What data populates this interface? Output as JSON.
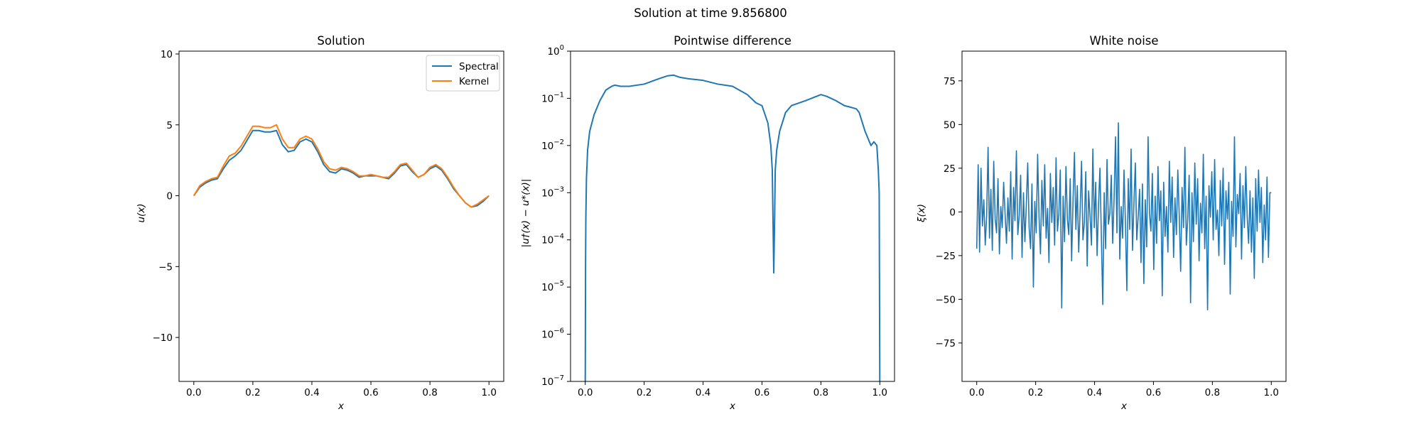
{
  "suptitle": "Solution at time 9.856800",
  "colors": {
    "spectral": "#1f77b4",
    "kernel": "#ff7f0e",
    "noise": "#1f77b4",
    "diff": "#1f77b4"
  },
  "chart_data": [
    {
      "type": "line",
      "title": "Solution",
      "xlabel": "x",
      "ylabel": "u(x)",
      "xlim": [
        -0.05,
        1.05
      ],
      "ylim": [
        -13.1,
        10.2
      ],
      "xticks": [
        0.0,
        0.2,
        0.4,
        0.6,
        0.8,
        1.0
      ],
      "xtick_labels": [
        "0.0",
        "0.2",
        "0.4",
        "0.6",
        "0.8",
        "1.0"
      ],
      "yticks": [
        10,
        5,
        0,
        -5,
        -10
      ],
      "ytick_labels": [
        "10",
        "5",
        "0",
        "−5",
        "−10"
      ],
      "legend": {
        "placement": "top-right",
        "entries": [
          "Spectral",
          "Kernel"
        ]
      },
      "series": [
        {
          "name": "Spectral",
          "x": [
            0.0,
            0.02,
            0.04,
            0.06,
            0.08,
            0.1,
            0.12,
            0.14,
            0.16,
            0.18,
            0.2,
            0.22,
            0.24,
            0.26,
            0.28,
            0.3,
            0.32,
            0.34,
            0.36,
            0.38,
            0.4,
            0.42,
            0.44,
            0.46,
            0.48,
            0.5,
            0.52,
            0.54,
            0.56,
            0.58,
            0.6,
            0.62,
            0.64,
            0.66,
            0.68,
            0.7,
            0.72,
            0.74,
            0.76,
            0.78,
            0.8,
            0.82,
            0.84,
            0.86,
            0.88,
            0.9,
            0.92,
            0.94,
            0.96,
            0.98,
            1.0
          ],
          "y": [
            0.0,
            0.6,
            0.9,
            1.1,
            1.2,
            1.9,
            2.5,
            2.8,
            3.2,
            3.9,
            4.6,
            4.6,
            4.5,
            4.5,
            4.6,
            3.6,
            3.1,
            3.2,
            3.8,
            4.0,
            3.8,
            3.1,
            2.2,
            1.7,
            1.6,
            1.9,
            1.8,
            1.6,
            1.3,
            1.4,
            1.4,
            1.4,
            1.3,
            1.2,
            1.6,
            2.1,
            2.2,
            1.7,
            1.3,
            1.5,
            1.9,
            2.1,
            1.8,
            1.2,
            0.5,
            0.0,
            -0.5,
            -0.8,
            -0.7,
            -0.4,
            0.0
          ]
        },
        {
          "name": "Kernel",
          "x": [
            0.0,
            0.02,
            0.04,
            0.06,
            0.08,
            0.1,
            0.12,
            0.14,
            0.16,
            0.18,
            0.2,
            0.22,
            0.24,
            0.26,
            0.28,
            0.3,
            0.32,
            0.34,
            0.36,
            0.38,
            0.4,
            0.42,
            0.44,
            0.46,
            0.48,
            0.5,
            0.52,
            0.54,
            0.56,
            0.58,
            0.6,
            0.62,
            0.64,
            0.66,
            0.68,
            0.7,
            0.72,
            0.74,
            0.76,
            0.78,
            0.8,
            0.82,
            0.84,
            0.86,
            0.88,
            0.9,
            0.92,
            0.94,
            0.96,
            0.98,
            1.0
          ],
          "y": [
            0.0,
            0.7,
            1.0,
            1.2,
            1.3,
            2.1,
            2.8,
            3.0,
            3.5,
            4.2,
            4.9,
            4.9,
            4.8,
            4.8,
            5.0,
            4.0,
            3.4,
            3.4,
            4.0,
            4.2,
            4.0,
            3.3,
            2.4,
            1.9,
            1.8,
            2.0,
            1.9,
            1.7,
            1.4,
            1.4,
            1.5,
            1.4,
            1.3,
            1.3,
            1.7,
            2.2,
            2.3,
            1.8,
            1.3,
            1.5,
            2.0,
            2.2,
            1.9,
            1.3,
            0.6,
            0.0,
            -0.5,
            -0.8,
            -0.6,
            -0.3,
            0.0
          ]
        }
      ]
    },
    {
      "type": "line",
      "title": "Pointwise difference",
      "xlabel": "x",
      "ylabel": "|u†(x) − u*(x)|",
      "scale_y": "log",
      "xlim": [
        -0.05,
        1.05
      ],
      "ylim": [
        1e-07,
        1
      ],
      "xticks": [
        0.0,
        0.2,
        0.4,
        0.6,
        0.8,
        1.0
      ],
      "xtick_labels": [
        "0.0",
        "0.2",
        "0.4",
        "0.6",
        "0.8",
        "1.0"
      ],
      "yticks": [
        1,
        0.1,
        0.01,
        0.001,
        0.0001,
        1e-05,
        1e-06,
        1e-07
      ],
      "ytick_bases": [
        "10",
        "10",
        "10",
        "10",
        "10",
        "10",
        "10",
        "10"
      ],
      "ytick_exponents": [
        "0",
        "−1",
        "−2",
        "−3",
        "−4",
        "−5",
        "−6",
        "−7"
      ],
      "series": [
        {
          "x": [
            0.0,
            0.001,
            0.002,
            0.004,
            0.008,
            0.015,
            0.03,
            0.05,
            0.07,
            0.09,
            0.1,
            0.12,
            0.15,
            0.2,
            0.25,
            0.28,
            0.3,
            0.32,
            0.35,
            0.4,
            0.45,
            0.5,
            0.55,
            0.58,
            0.6,
            0.62,
            0.63,
            0.635,
            0.64,
            0.643,
            0.645,
            0.65,
            0.66,
            0.68,
            0.7,
            0.75,
            0.8,
            0.82,
            0.85,
            0.88,
            0.9,
            0.92,
            0.93,
            0.95,
            0.97,
            0.98,
            0.99,
            0.995,
            0.998,
            1.0
          ],
          "y": [
            1e-07,
            3e-05,
            0.0003,
            0.002,
            0.008,
            0.02,
            0.045,
            0.09,
            0.15,
            0.18,
            0.19,
            0.18,
            0.18,
            0.2,
            0.26,
            0.3,
            0.31,
            0.28,
            0.26,
            0.24,
            0.2,
            0.18,
            0.12,
            0.08,
            0.07,
            0.03,
            0.01,
            0.003,
            2e-05,
            0.0003,
            0.003,
            0.008,
            0.02,
            0.05,
            0.07,
            0.09,
            0.12,
            0.11,
            0.09,
            0.07,
            0.065,
            0.06,
            0.05,
            0.02,
            0.01,
            0.012,
            0.01,
            0.003,
            0.001,
            1e-07
          ]
        }
      ]
    },
    {
      "type": "line",
      "title": "White noise",
      "xlabel": "x",
      "ylabel": "ξ(x)",
      "xlim": [
        -0.05,
        1.05
      ],
      "ylim": [
        -97,
        92
      ],
      "xticks": [
        0.0,
        0.2,
        0.4,
        0.6,
        0.8,
        1.0
      ],
      "xtick_labels": [
        "0.0",
        "0.2",
        "0.4",
        "0.6",
        "0.8",
        "1.0"
      ],
      "yticks": [
        75,
        50,
        25,
        0,
        -25,
        -50,
        -75
      ],
      "ytick_labels": [
        "75",
        "50",
        "25",
        "0",
        "−25",
        "−50",
        "−75"
      ],
      "series": [
        {
          "x_start": 0.0,
          "x_end": 1.0,
          "y": [
            -21,
            27,
            -23,
            25,
            -8,
            7,
            -19,
            -2,
            37,
            -15,
            13,
            -22,
            29,
            -4,
            -12,
            19,
            -24,
            3,
            -9,
            17,
            -1,
            -18,
            8,
            -11,
            23,
            -27,
            14,
            -5,
            35,
            -13,
            -2,
            21,
            -26,
            11,
            -17,
            4,
            28,
            -9,
            -21,
            16,
            -43,
            6,
            -12,
            33,
            -3,
            -24,
            18,
            -8,
            27,
            -15,
            2,
            -29,
            22,
            -6,
            14,
            -19,
            31,
            -11,
            -1,
            24,
            -55,
            9,
            -17,
            26,
            -4,
            -13,
            19,
            -28,
            7,
            34,
            -10,
            15,
            -23,
            1,
            29,
            -16,
            -6,
            23,
            -31,
            12,
            -2,
            -19,
            36,
            -9,
            17,
            -25,
            4,
            25,
            -14,
            -53,
            11,
            -21,
            30,
            -7,
            -1,
            21,
            -18,
            8,
            43,
            -12,
            51,
            -27,
            3,
            -15,
            24,
            -6,
            -45,
            19,
            -10,
            36,
            -22,
            5,
            28,
            -16,
            -3,
            13,
            -29,
            16,
            -41,
            7,
            -20,
            43,
            -1,
            -11,
            22,
            -33,
            9,
            -18,
            26,
            -5,
            12,
            -48,
            17,
            -14,
            3,
            -23,
            29,
            -6,
            20,
            -26,
            8,
            -13,
            24,
            -2,
            -34,
            14,
            -9,
            37,
            -19,
            -4,
            21,
            -52,
            11,
            -17,
            28,
            -7,
            19,
            -28,
            5,
            -12,
            33,
            -21,
            9,
            -56,
            15,
            -3,
            23,
            -16,
            30,
            -10,
            1,
            -25,
            18,
            -8,
            25,
            -30,
            12,
            -4,
            17,
            -47,
            6,
            -14,
            43,
            -20,
            10,
            -1,
            22,
            -27,
            15,
            -9,
            26,
            -3,
            -18,
            12,
            -23,
            8,
            -38,
            19,
            -11,
            24,
            -6,
            14,
            -29,
            4,
            -16,
            20,
            -26,
            11
          ],
          "y_last": 11
        }
      ]
    }
  ]
}
